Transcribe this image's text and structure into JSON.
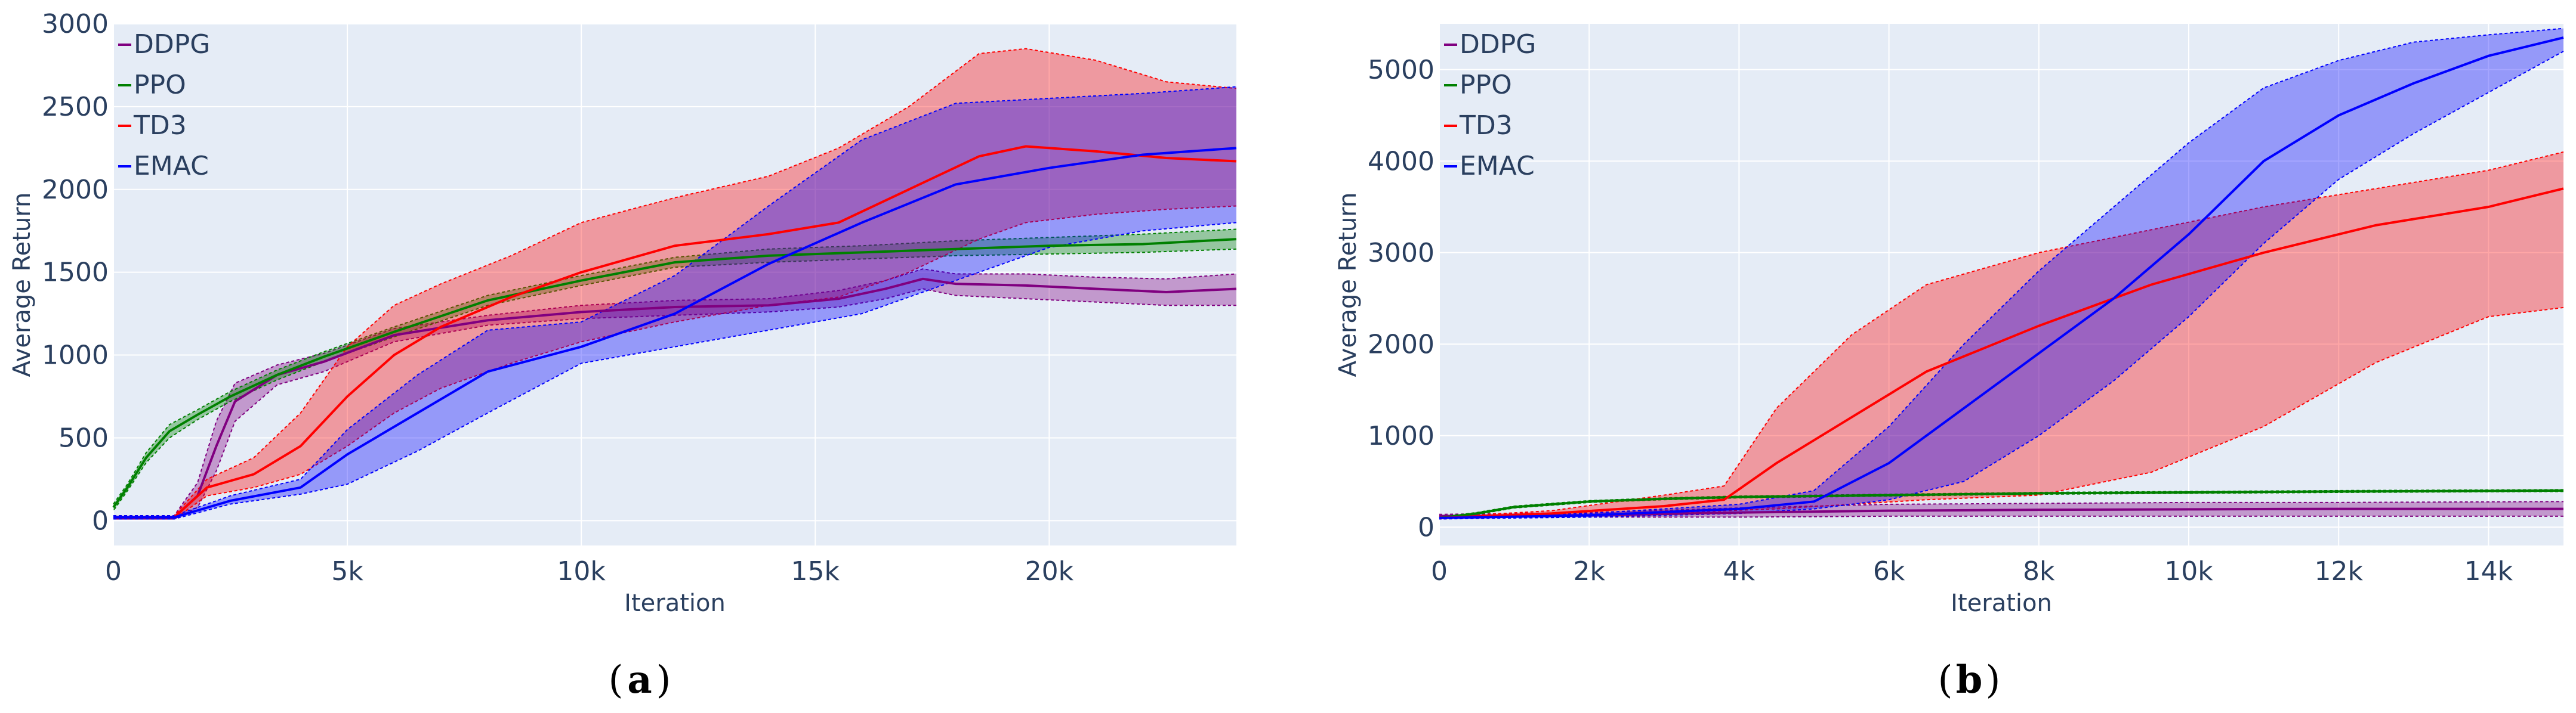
{
  "panels": [
    {
      "caption_letter": "a",
      "chart_data": {
        "type": "line",
        "title": "",
        "xlabel": "Iteration",
        "ylabel": "Average Return",
        "xlim": [
          0,
          24000
        ],
        "ylim": [
          -150,
          3000
        ],
        "xticks": [
          0,
          5000,
          10000,
          15000,
          20000
        ],
        "xtick_labels": [
          "0",
          "5k",
          "10k",
          "15k",
          "20k"
        ],
        "yticks": [
          0,
          500,
          1000,
          1500,
          2000,
          2500,
          3000
        ],
        "ytick_labels": [
          "0",
          "500",
          "1000",
          "1500",
          "2000",
          "2500",
          "3000"
        ],
        "grid": true,
        "legend_position": "top-left",
        "legend": [
          "DDPG",
          "PPO",
          "TD3",
          "EMAC"
        ],
        "series": [
          {
            "name": "DDPG",
            "color": "#800080",
            "x": [
              0,
              1300,
              1800,
              2200,
              2600,
              3500,
              4500,
              6000,
              8000,
              10000,
              12000,
              14000,
              15500,
              16500,
              17300,
              18000,
              19500,
              21000,
              22500,
              24000
            ],
            "mean": [
              20,
              20,
              150,
              450,
              720,
              880,
              960,
              1120,
              1210,
              1260,
              1290,
              1300,
              1340,
              1400,
              1460,
              1430,
              1420,
              1400,
              1380,
              1400
            ],
            "lower": [
              10,
              10,
              80,
              300,
              600,
              820,
              900,
              1080,
              1180,
              1220,
              1240,
              1260,
              1290,
              1340,
              1400,
              1360,
              1340,
              1320,
              1300,
              1300
            ],
            "upper": [
              30,
              30,
              230,
              600,
              830,
              940,
              1010,
              1160,
              1240,
              1300,
              1330,
              1340,
              1390,
              1450,
              1520,
              1490,
              1490,
              1470,
              1460,
              1490
            ]
          },
          {
            "name": "PPO",
            "color": "#008000",
            "x": [
              0,
              300,
              700,
              1200,
              1800,
              2500,
              3500,
              4500,
              6000,
              8000,
              10000,
              12000,
              14000,
              16000,
              18000,
              20000,
              22000,
              24000
            ],
            "mean": [
              80,
              200,
              380,
              540,
              640,
              750,
              880,
              990,
              1140,
              1330,
              1450,
              1560,
              1600,
              1620,
              1640,
              1660,
              1670,
              1700
            ],
            "lower": [
              60,
              180,
              350,
              500,
              610,
              720,
              850,
              960,
              1110,
              1300,
              1420,
              1530,
              1560,
              1580,
              1600,
              1610,
              1620,
              1640
            ],
            "upper": [
              100,
              220,
              410,
              580,
              670,
              780,
              910,
              1020,
              1170,
              1360,
              1480,
              1590,
              1640,
              1660,
              1690,
              1710,
              1730,
              1760
            ]
          },
          {
            "name": "TD3",
            "color": "#ff0000",
            "x": [
              0,
              1300,
              2000,
              3000,
              4000,
              5000,
              6000,
              7000,
              8500,
              10000,
              12000,
              14000,
              15500,
              17000,
              18500,
              19500,
              21000,
              22500,
              24000
            ],
            "mean": [
              20,
              20,
              200,
              280,
              450,
              750,
              1000,
              1170,
              1350,
              1500,
              1660,
              1730,
              1800,
              2000,
              2200,
              2260,
              2230,
              2190,
              2170
            ],
            "lower": [
              10,
              10,
              150,
              200,
              280,
              450,
              650,
              800,
              950,
              1080,
              1200,
              1300,
              1350,
              1500,
              1700,
              1800,
              1850,
              1880,
              1900
            ],
            "upper": [
              30,
              30,
              250,
              380,
              650,
              1050,
              1300,
              1430,
              1600,
              1800,
              1950,
              2080,
              2250,
              2500,
              2820,
              2850,
              2780,
              2650,
              2610
            ]
          },
          {
            "name": "EMAC",
            "color": "#0000ff",
            "x": [
              0,
              1300,
              2500,
              4000,
              5000,
              6500,
              8000,
              10000,
              12000,
              14000,
              16000,
              18000,
              20000,
              22000,
              24000
            ],
            "mean": [
              20,
              20,
              120,
              200,
              400,
              650,
              900,
              1050,
              1250,
              1550,
              1800,
              2030,
              2130,
              2210,
              2250
            ],
            "lower": [
              10,
              10,
              100,
              160,
              220,
              420,
              650,
              950,
              1050,
              1150,
              1250,
              1450,
              1650,
              1750,
              1800
            ],
            "upper": [
              30,
              30,
              150,
              250,
              550,
              880,
              1150,
              1200,
              1480,
              1900,
              2300,
              2520,
              2550,
              2580,
              2620
            ]
          }
        ]
      }
    },
    {
      "caption_letter": "b",
      "chart_data": {
        "type": "line",
        "title": "",
        "xlabel": "Iteration",
        "ylabel": "Average Return",
        "xlim": [
          0,
          15000
        ],
        "ylim": [
          -200,
          5500
        ],
        "xticks": [
          0,
          2000,
          4000,
          6000,
          8000,
          10000,
          12000,
          14000
        ],
        "xtick_labels": [
          "0",
          "2k",
          "4k",
          "6k",
          "8k",
          "10k",
          "12k",
          "14k"
        ],
        "yticks": [
          0,
          1000,
          2000,
          3000,
          4000,
          5000
        ],
        "ytick_labels": [
          "0",
          "1000",
          "2000",
          "3000",
          "4000",
          "5000"
        ],
        "grid": true,
        "legend_position": "top-left",
        "legend": [
          "DDPG",
          "PPO",
          "TD3",
          "EMAC"
        ],
        "series": [
          {
            "name": "DDPG",
            "color": "#800080",
            "x": [
              0,
              2000,
              4000,
              6000,
              8000,
              10000,
              12000,
              15000
            ],
            "mean": [
              120,
              130,
              160,
              180,
              190,
              195,
              200,
              200
            ],
            "lower": [
              100,
              110,
              110,
              120,
              120,
              120,
              120,
              120
            ],
            "upper": [
              140,
              160,
              210,
              250,
              260,
              270,
              270,
              280
            ]
          },
          {
            "name": "PPO",
            "color": "#008000",
            "x": [
              0,
              500,
              1000,
              2000,
              3000,
              4000,
              6000,
              8000,
              10000,
              12000,
              15000
            ],
            "mean": [
              100,
              150,
              220,
              280,
              310,
              330,
              350,
              370,
              380,
              390,
              400
            ],
            "lower": [
              90,
              140,
              210,
              270,
              300,
              320,
              340,
              360,
              370,
              380,
              390
            ],
            "upper": [
              110,
              160,
              230,
              290,
              320,
              340,
              360,
              380,
              390,
              400,
              410
            ]
          },
          {
            "name": "TD3",
            "color": "#ff0000",
            "x": [
              0,
              1500,
              3000,
              3800,
              4500,
              5500,
              6500,
              8000,
              9500,
              11000,
              12500,
              14000,
              15000
            ],
            "mean": [
              100,
              150,
              230,
              300,
              700,
              1200,
              1700,
              2200,
              2650,
              3000,
              3300,
              3500,
              3700
            ],
            "lower": [
              90,
              120,
              150,
              180,
              200,
              250,
              300,
              350,
              600,
              1100,
              1800,
              2300,
              2400
            ],
            "upper": [
              110,
              180,
              350,
              450,
              1300,
              2100,
              2650,
              3000,
              3250,
              3500,
              3700,
              3900,
              4100
            ]
          },
          {
            "name": "EMAC",
            "color": "#0000ff",
            "x": [
              0,
              2000,
              4000,
              5000,
              6000,
              7000,
              8000,
              9000,
              10000,
              11000,
              12000,
              13000,
              14000,
              15000
            ],
            "mean": [
              100,
              130,
              200,
              280,
              700,
              1300,
              1900,
              2500,
              3200,
              4000,
              4500,
              4850,
              5150,
              5350
            ],
            "lower": [
              90,
              110,
              150,
              200,
              300,
              500,
              1000,
              1600,
              2300,
              3100,
              3800,
              4300,
              4750,
              5200
            ],
            "upper": [
              110,
              150,
              250,
              400,
              1100,
              2000,
              2800,
              3500,
              4200,
              4800,
              5100,
              5300,
              5380,
              5450
            ]
          }
        ]
      }
    }
  ]
}
